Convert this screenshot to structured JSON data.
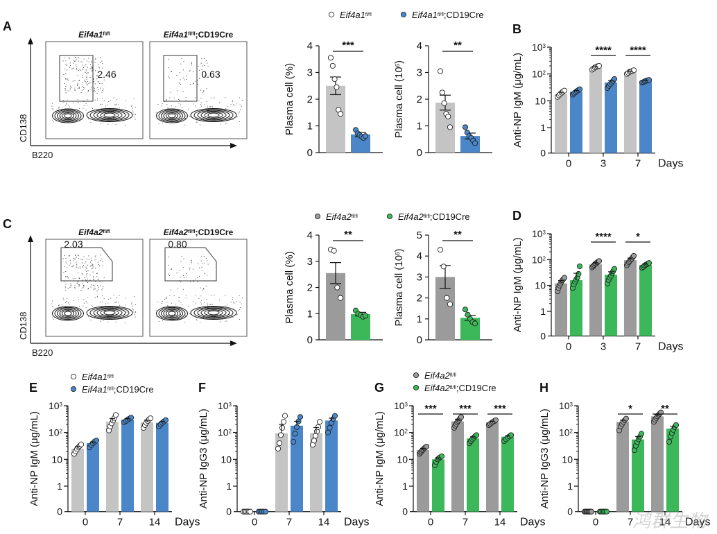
{
  "colors": {
    "wt": "#c4c4c4",
    "wt_dark": "#9b9b9b",
    "blue": "#4a86c8",
    "green": "#3cb85a",
    "ink": "#111111"
  },
  "legend_a": {
    "wt": "Eif4a1",
    "wt_sup": "fl/fl",
    "cre_gene": "Eif4a1",
    "cre_sup": "fl/fl",
    "cre_suffix": ";CD19Cre"
  },
  "legend_c": {
    "wt": "Eif4a2",
    "wt_sup": "fl/fl",
    "cre_gene": "Eif4a2",
    "cre_sup": "fl/fl",
    "cre_suffix": ";CD19Cre"
  },
  "flow": {
    "a": {
      "letter": "A",
      "left_title": "Eif4a1",
      "left_sup": "fl/fl",
      "right_title": "Eif4a1",
      "right_sup": "fl/fl",
      "right_suffix": ";CD19Cre",
      "left_value": "2.46",
      "right_value": "0.63",
      "ylabel": "CD138",
      "xlabel": "B220"
    },
    "c": {
      "letter": "C",
      "left_title": "Eif4a2",
      "left_sup": "fl/fl",
      "right_title": "Eif4a2",
      "right_sup": "fl/fl",
      "right_suffix": ";CD19Cre",
      "left_value": "2.03",
      "right_value": "0.80",
      "ylabel": "CD138",
      "xlabel": "B220"
    }
  },
  "chart_data": [
    {
      "panel": "A",
      "type": "bar",
      "ylabel": "Plasma cell (%)",
      "ylim": [
        0,
        4
      ],
      "ticks": [
        "0",
        "1",
        "2",
        "3",
        "4"
      ],
      "series": [
        {
          "name": "Eif4a1fl/fl",
          "value": 2.5,
          "sem": 0.33,
          "points": [
            3.55,
            3.25,
            2.75,
            2.45,
            1.6,
            1.45
          ]
        },
        {
          "name": "Eif4a1fl/fl;CD19Cre",
          "value": 0.68,
          "sem": 0.08,
          "points": [
            0.85,
            0.72,
            0.65,
            0.6,
            0.55,
            0.62
          ]
        }
      ],
      "significance": "***"
    },
    {
      "panel": "A",
      "type": "bar",
      "ylabel": "Plasma cell (10",
      "ylabel_sup": "6",
      "ylabel_end": ")",
      "ylim": [
        0,
        4
      ],
      "ticks": [
        "0",
        "1",
        "2",
        "3",
        "4"
      ],
      "series": [
        {
          "name": "Eif4a1fl/fl",
          "value": 1.87,
          "sem": 0.28,
          "points": [
            3.05,
            2.25,
            1.85,
            1.45,
            1.35,
            0.95
          ]
        },
        {
          "name": "Eif4a1fl/fl;CD19Cre",
          "value": 0.62,
          "sem": 0.11,
          "points": [
            0.95,
            0.75,
            0.62,
            0.55,
            0.45,
            0.35
          ]
        }
      ],
      "significance": "**"
    },
    {
      "panel": "B",
      "letter": "B",
      "type": "bar",
      "scale": "log",
      "ylabel": "Anti-NP IgM (μg/mL)",
      "xlabel": "Days",
      "categories": [
        "0",
        "3",
        "7"
      ],
      "series": [
        {
          "name": "Eif4a1fl/fl",
          "values": [
            18,
            170,
            115
          ],
          "points": [
            [
              14,
              16,
              18,
              20,
              22,
              24
            ],
            [
              145,
              160,
              175,
              185,
              195,
              200
            ],
            [
              100,
              110,
              120,
              125,
              130,
              138
            ]
          ]
        },
        {
          "name": "Eif4a1fl/fl;CD19Cre",
          "values": [
            22,
            48,
            55
          ],
          "points": [
            [
              17,
              19,
              21,
              23,
              25,
              27
            ],
            [
              30,
              36,
              42,
              48,
              55,
              65
            ],
            [
              48,
              50,
              53,
              56,
              58,
              60
            ]
          ]
        }
      ],
      "significance": [
        "",
        "****",
        "****"
      ]
    },
    {
      "panel": "C",
      "type": "bar",
      "ylabel": "Plasma cell (%)",
      "ylim": [
        0,
        4
      ],
      "ticks": [
        "0",
        "1",
        "2",
        "3",
        "4"
      ],
      "series": [
        {
          "name": "Eif4a2fl/fl",
          "value": 2.55,
          "sem": 0.4,
          "points": [
            3.45,
            3.4,
            2.0,
            1.6
          ]
        },
        {
          "name": "Eif4a2fl/fl;CD19Cre",
          "value": 0.98,
          "sem": 0.07,
          "points": [
            1.12,
            1.0,
            0.95,
            0.88,
            0.92
          ]
        }
      ],
      "significance": "**"
    },
    {
      "panel": "C",
      "type": "bar",
      "ylabel": "Plasma cell (10",
      "ylabel_sup": "6",
      "ylabel_end": ")",
      "ylim": [
        0,
        5
      ],
      "ticks": [
        "0",
        "1",
        "2",
        "3",
        "4",
        "5"
      ],
      "series": [
        {
          "name": "Eif4a2fl/fl",
          "value": 3.0,
          "sem": 0.55,
          "points": [
            4.3,
            3.5,
            2.0,
            1.7
          ]
        },
        {
          "name": "Eif4a2fl/fl;CD19Cre",
          "value": 1.05,
          "sem": 0.12,
          "points": [
            1.45,
            1.2,
            1.0,
            0.85,
            0.78
          ]
        }
      ],
      "significance": "**"
    },
    {
      "panel": "D",
      "letter": "D",
      "type": "bar",
      "scale": "log",
      "ylabel": "Anti-NP IgM (μg/mL)",
      "xlabel": "Days",
      "categories": [
        "0",
        "3",
        "7"
      ],
      "series": [
        {
          "name": "Eif4a2fl/fl",
          "values": [
            12,
            65,
            95
          ],
          "points": [
            [
              6,
              8,
              10,
              12,
              14,
              16,
              18,
              20
            ],
            [
              50,
              55,
              62,
              68,
              72,
              78,
              82,
              88
            ],
            [
              60,
              70,
              80,
              90,
              100,
              110,
              125,
              140
            ]
          ]
        },
        {
          "name": "Eif4a2fl/fl;CD19Cre",
          "values": [
            16,
            26,
            62
          ],
          "points": [
            [
              8,
              11,
              14,
              17,
              20,
              28,
              55
            ],
            [
              12,
              16,
              20,
              24,
              30,
              36,
              44
            ],
            [
              48,
              52,
              58,
              62,
              66,
              70,
              74
            ]
          ]
        }
      ],
      "significance": [
        "",
        "****",
        "*"
      ]
    },
    {
      "panel": "E",
      "letter": "E",
      "type": "bar",
      "scale": "log",
      "ylabel": "Anti-NP IgM (μg/mL)",
      "xlabel": "Days",
      "categories": [
        "0",
        "7",
        "14"
      ],
      "series": [
        {
          "name": "Eif4a1fl/fl",
          "values": [
            25,
            250,
            240
          ],
          "points": [
            [
              16,
              20,
              24,
              28,
              32,
              36
            ],
            [
              120,
              170,
              220,
              280,
              350,
              450
            ],
            [
              150,
              190,
              230,
              270,
              310,
              340
            ]
          ]
        },
        {
          "name": "Eif4a1fl/fl;CD19Cre",
          "values": [
            40,
            300,
            230
          ],
          "points": [
            [
              28,
              34,
              40,
              46,
              50
            ],
            [
              240,
              270,
              300,
              330,
              360
            ],
            [
              170,
              200,
              230,
              260,
              290
            ]
          ]
        }
      ],
      "significance": [
        "",
        "",
        ""
      ]
    },
    {
      "panel": "F",
      "letter": "F",
      "type": "bar",
      "scale": "log",
      "ylabel": "Anti-NP IgG3 (μg/mL)",
      "xlabel": "Days",
      "categories": [
        "0",
        "7",
        "14"
      ],
      "series": [
        {
          "name": "Eif4a1fl/fl",
          "values": [
            0,
            95,
            95
          ],
          "points": [
            [
              0,
              0,
              0,
              0,
              0,
              0
            ],
            [
              25,
              40,
              80,
              150,
              250,
              420
            ],
            [
              35,
              50,
              75,
              110,
              160,
              250
            ]
          ]
        },
        {
          "name": "Eif4a1fl/fl;CD19Cre",
          "values": [
            0,
            180,
            280
          ],
          "points": [
            [
              0,
              0,
              0,
              0,
              0
            ],
            [
              45,
              90,
              160,
              260,
              380
            ],
            [
              100,
              150,
              230,
              320,
              420
            ]
          ]
        }
      ],
      "significance": [
        "",
        "",
        ""
      ]
    },
    {
      "panel": "G",
      "letter": "G",
      "type": "bar",
      "scale": "log",
      "ylabel": "Anti-NP IgM (μg/mL)",
      "xlabel": "Days",
      "categories": [
        "0",
        "7",
        "14"
      ],
      "series": [
        {
          "name": "Eif4a2fl/fl",
          "values": [
            22,
            260,
            240
          ],
          "points": [
            [
              16,
              18,
              20,
              22,
              24,
              26,
              28,
              30
            ],
            [
              150,
              180,
              210,
              240,
              270,
              300,
              340,
              380
            ],
            [
              190,
              210,
              230,
              250,
              270,
              290
            ]
          ]
        },
        {
          "name": "Eif4a2fl/fl;CD19Cre",
          "values": [
            10,
            60,
            70
          ],
          "points": [
            [
              6,
              8,
              10,
              11,
              12,
              13
            ],
            [
              40,
              48,
              56,
              64,
              72,
              80
            ],
            [
              48,
              56,
              64,
              72,
              80
            ]
          ]
        }
      ],
      "significance": [
        "***",
        "***",
        "***"
      ]
    },
    {
      "panel": "H",
      "letter": "H",
      "type": "bar",
      "scale": "log",
      "ylabel": "Anti-NP IgG3 (μg/mL)",
      "xlabel": "Days",
      "categories": [
        "0",
        "7",
        "14"
      ],
      "series": [
        {
          "name": "Eif4a2fl/fl",
          "values": [
            0,
            250,
            400
          ],
          "points": [
            [
              0,
              0,
              0,
              0,
              0,
              0,
              0,
              0
            ],
            [
              120,
              170,
              210,
              250,
              290,
              330
            ],
            [
              250,
              300,
              350,
              400,
              450,
              500,
              560
            ]
          ]
        },
        {
          "name": "Eif4a2fl/fl;CD19Cre",
          "values": [
            0,
            55,
            140
          ],
          "points": [
            [
              0,
              0,
              0,
              0,
              0,
              0
            ],
            [
              22,
              32,
              44,
              56,
              70,
              90
            ],
            [
              45,
              70,
              95,
              125,
              160,
              190
            ]
          ]
        }
      ],
      "significance": [
        "",
        "*",
        "**"
      ]
    }
  ],
  "watermark": "鸿群生物"
}
